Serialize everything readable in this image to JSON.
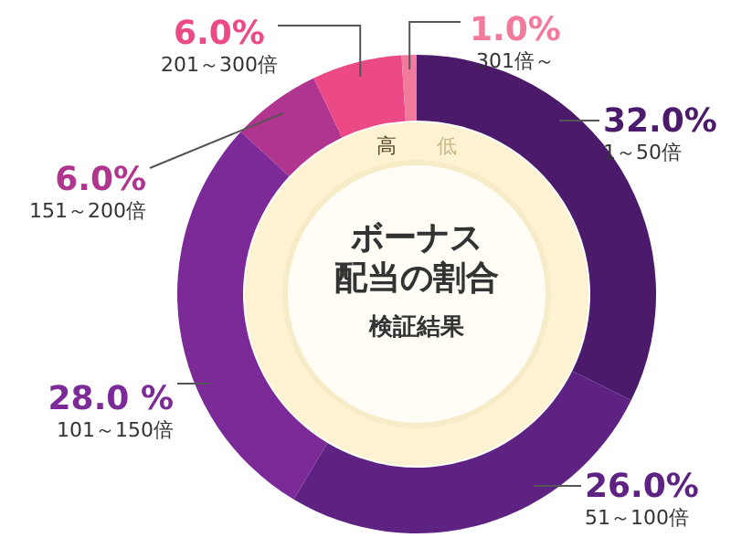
{
  "chart_data": {
    "type": "donut",
    "title": "ボーナス",
    "subtitle": "配当の割合",
    "categories": [
      "1～50倍",
      "51～100倍",
      "101～150倍",
      "151～200倍",
      "201～300倍",
      "301倍～"
    ],
    "values": [
      32,
      26,
      28,
      6,
      6,
      1
    ],
    "value_labels": [
      "32.0%",
      "26.0%",
      "28.0 %",
      "6.0%",
      "6.0%",
      "1.0%"
    ],
    "colors": [
      "#4b1a6b",
      "#5e2283",
      "#7b2a98",
      "#b0358f",
      "#ec4a86",
      "#f27a9c"
    ],
    "annotations": [
      "高",
      "低",
      "検証結果"
    ]
  }
}
